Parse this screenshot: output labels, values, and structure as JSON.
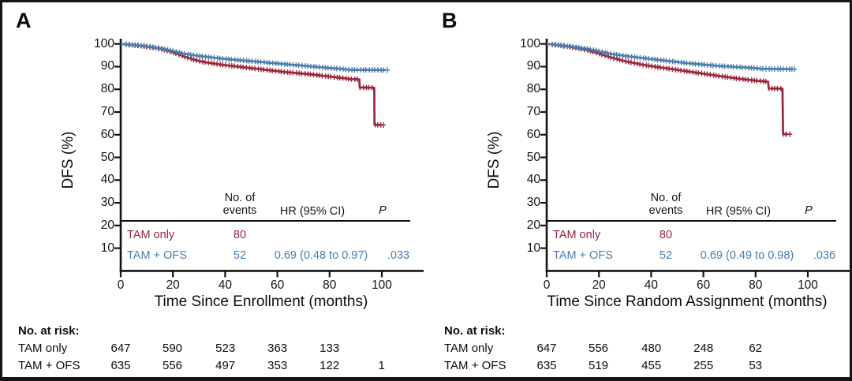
{
  "colors": {
    "tam_only": "#9A2439",
    "tam_ofs": "#4A7DAE",
    "axis": "#121212",
    "text": "#0d0d0d"
  },
  "figure": {
    "panels": [
      {
        "label": "A",
        "y_axis": {
          "title": "DFS (%)",
          "ticks": [
            100,
            90,
            80,
            70,
            60,
            50,
            40,
            30,
            20,
            10
          ]
        },
        "x_axis": {
          "title": "Time Since Enrollment (months)",
          "ticks": [
            0,
            20,
            40,
            60,
            80,
            100
          ]
        },
        "stats_table": {
          "events_header": "No. of\nevents",
          "hr_header": "HR (95% CI)",
          "p_header": "P",
          "rows": [
            {
              "name": "TAM only",
              "events": "80",
              "hr": "",
              "p": "",
              "color_key": "tam_only"
            },
            {
              "name": "TAM + OFS",
              "events": "52",
              "hr": "0.69 (0.48 to 0.97)",
              "p": ".033",
              "color_key": "tam_ofs"
            }
          ]
        },
        "risk_table": {
          "title": "No. at risk:",
          "rows": [
            {
              "name": "TAM only",
              "values": [
                "647",
                "590",
                "523",
                "363",
                "133",
                ""
              ]
            },
            {
              "name": "TAM + OFS",
              "values": [
                "635",
                "556",
                "497",
                "353",
                "122",
                "1"
              ]
            }
          ]
        }
      },
      {
        "label": "B",
        "y_axis": {
          "title": "DFS (%)",
          "ticks": [
            100,
            90,
            80,
            70,
            60,
            50,
            40,
            30,
            20,
            10
          ]
        },
        "x_axis": {
          "title": "Time Since Random Assignment (months)",
          "ticks": [
            0,
            20,
            40,
            60,
            80,
            100
          ]
        },
        "stats_table": {
          "events_header": "No. of\nevents",
          "hr_header": "HR (95% CI)",
          "p_header": "P",
          "rows": [
            {
              "name": "TAM only",
              "events": "80",
              "hr": "",
              "p": "",
              "color_key": "tam_only"
            },
            {
              "name": "TAM + OFS",
              "events": "52",
              "hr": "0.69 (0.49 to 0.98)",
              "p": ".036",
              "color_key": "tam_ofs"
            }
          ]
        },
        "risk_table": {
          "title": "No. at risk:",
          "rows": [
            {
              "name": "TAM only",
              "values": [
                "647",
                "556",
                "480",
                "248",
                "62"
              ]
            },
            {
              "name": "TAM + OFS",
              "values": [
                "635",
                "519",
                "455",
                "255",
                "53"
              ]
            }
          ]
        }
      }
    ]
  },
  "chart_data": [
    {
      "type": "line",
      "subtype": "kaplan-meier-step",
      "title": "A",
      "xlabel": "Time Since Enrollment (months)",
      "ylabel": "DFS (%)",
      "xlim": [
        0,
        114
      ],
      "ylim": [
        0,
        102
      ],
      "x_ticks": [
        0,
        20,
        40,
        60,
        80,
        100
      ],
      "y_ticks": [
        10,
        20,
        30,
        40,
        50,
        60,
        70,
        80,
        90,
        100
      ],
      "grid": false,
      "legend_position": "in-plot stats table",
      "series": [
        {
          "name": "TAM only",
          "color": "#9A2439",
          "events": 80,
          "points": [
            [
              0,
              100
            ],
            [
              3,
              99.7
            ],
            [
              6,
              99.4
            ],
            [
              9,
              99.0
            ],
            [
              12,
              98.5
            ],
            [
              15,
              97.9
            ],
            [
              18,
              97.0
            ],
            [
              21,
              95.9
            ],
            [
              24,
              94.6
            ],
            [
              26,
              93.8
            ],
            [
              28,
              93.1
            ],
            [
              30,
              92.5
            ],
            [
              33,
              91.8
            ],
            [
              36,
              91.3
            ],
            [
              39,
              90.8
            ],
            [
              42,
              90.4
            ],
            [
              45,
              90.0
            ],
            [
              48,
              89.6
            ],
            [
              51,
              89.2
            ],
            [
              54,
              88.8
            ],
            [
              57,
              88.4
            ],
            [
              60,
              88.0
            ],
            [
              63,
              87.6
            ],
            [
              66,
              87.3
            ],
            [
              69,
              87.0
            ],
            [
              72,
              86.7
            ],
            [
              75,
              86.3
            ],
            [
              78,
              85.9
            ],
            [
              81,
              85.5
            ],
            [
              84,
              85.1
            ],
            [
              86,
              84.8
            ],
            [
              88,
              84.5
            ],
            [
              91.4,
              84.4
            ],
            [
              91.5,
              80.8
            ],
            [
              97.1,
              80.7
            ],
            [
              97.2,
              64.4
            ],
            [
              100,
              64.3
            ]
          ]
        },
        {
          "name": "TAM + OFS",
          "color": "#4A7DAE",
          "events": 52,
          "hr": "0.69 (0.48 to 0.97)",
          "p": ".033",
          "points": [
            [
              0,
              100
            ],
            [
              3,
              99.7
            ],
            [
              6,
              99.4
            ],
            [
              9,
              99.1
            ],
            [
              12,
              98.6
            ],
            [
              15,
              98.1
            ],
            [
              18,
              97.4
            ],
            [
              21,
              96.6
            ],
            [
              24,
              95.8
            ],
            [
              27,
              95.2
            ],
            [
              30,
              94.7
            ],
            [
              33,
              94.3
            ],
            [
              36,
              93.9
            ],
            [
              39,
              93.5
            ],
            [
              42,
              93.2
            ],
            [
              45,
              92.9
            ],
            [
              48,
              92.6
            ],
            [
              51,
              92.3
            ],
            [
              54,
              92.0
            ],
            [
              57,
              91.7
            ],
            [
              60,
              91.4
            ],
            [
              63,
              91.1
            ],
            [
              66,
              90.8
            ],
            [
              69,
              90.5
            ],
            [
              72,
              90.2
            ],
            [
              75,
              89.9
            ],
            [
              78,
              89.6
            ],
            [
              81,
              89.3
            ],
            [
              84,
              89.1
            ],
            [
              86,
              88.8
            ],
            [
              88,
              88.6
            ],
            [
              101.5,
              88.5
            ]
          ]
        }
      ],
      "at_risk": {
        "months": [
          0,
          20,
          40,
          60,
          80,
          100
        ],
        "TAM only": [
          647,
          590,
          523,
          363,
          133,
          null
        ],
        "TAM + OFS": [
          635,
          556,
          497,
          353,
          122,
          1
        ]
      }
    },
    {
      "type": "line",
      "subtype": "kaplan-meier-step",
      "title": "B",
      "xlabel": "Time Since Random Assignment (months)",
      "ylabel": "DFS (%)",
      "xlim": [
        0,
        112
      ],
      "ylim": [
        0,
        102
      ],
      "x_ticks": [
        0,
        20,
        40,
        60,
        80,
        100
      ],
      "y_ticks": [
        10,
        20,
        30,
        40,
        50,
        60,
        70,
        80,
        90,
        100
      ],
      "grid": false,
      "legend_position": "in-plot stats table",
      "series": [
        {
          "name": "TAM only",
          "color": "#9A2439",
          "events": 80,
          "points": [
            [
              0,
              100
            ],
            [
              3,
              99.7
            ],
            [
              6,
              99.2
            ],
            [
              9,
              98.7
            ],
            [
              12,
              98.1
            ],
            [
              15,
              97.4
            ],
            [
              18,
              96.5
            ],
            [
              21,
              95.4
            ],
            [
              24,
              94.3
            ],
            [
              27,
              93.3
            ],
            [
              30,
              92.4
            ],
            [
              33,
              91.7
            ],
            [
              36,
              91.0
            ],
            [
              39,
              90.4
            ],
            [
              42,
              89.9
            ],
            [
              45,
              89.4
            ],
            [
              48,
              88.9
            ],
            [
              51,
              88.4
            ],
            [
              54,
              87.9
            ],
            [
              57,
              87.4
            ],
            [
              60,
              86.9
            ],
            [
              63,
              86.4
            ],
            [
              66,
              85.9
            ],
            [
              69,
              85.4
            ],
            [
              72,
              84.9
            ],
            [
              75,
              84.5
            ],
            [
              78,
              84.1
            ],
            [
              81,
              83.7
            ],
            [
              84.8,
              83.4
            ],
            [
              85,
              80.4
            ],
            [
              90.3,
              80.3
            ],
            [
              90.5,
              60.3
            ],
            [
              92.5,
              60.2
            ]
          ]
        },
        {
          "name": "TAM + OFS",
          "color": "#4A7DAE",
          "events": 52,
          "hr": "0.69 (0.49 to 0.98)",
          "p": ".036",
          "points": [
            [
              0,
              100
            ],
            [
              3,
              99.7
            ],
            [
              6,
              99.3
            ],
            [
              9,
              98.9
            ],
            [
              12,
              98.4
            ],
            [
              15,
              97.9
            ],
            [
              18,
              97.3
            ],
            [
              21,
              96.5
            ],
            [
              24,
              95.8
            ],
            [
              27,
              95.2
            ],
            [
              30,
              94.7
            ],
            [
              33,
              94.3
            ],
            [
              36,
              93.9
            ],
            [
              39,
              93.5
            ],
            [
              42,
              93.1
            ],
            [
              45,
              92.7
            ],
            [
              48,
              92.3
            ],
            [
              51,
              91.9
            ],
            [
              54,
              91.5
            ],
            [
              57,
              91.2
            ],
            [
              60,
              90.9
            ],
            [
              63,
              90.6
            ],
            [
              66,
              90.3
            ],
            [
              69,
              90.1
            ],
            [
              72,
              89.9
            ],
            [
              75,
              89.7
            ],
            [
              78,
              89.5
            ],
            [
              80,
              89.3
            ],
            [
              82,
              89.1
            ],
            [
              84,
              89.0
            ],
            [
              94.3,
              88.9
            ]
          ]
        }
      ],
      "at_risk": {
        "months": [
          0,
          20,
          40,
          60,
          80
        ],
        "TAM only": [
          647,
          556,
          480,
          248,
          62
        ],
        "TAM + OFS": [
          635,
          519,
          455,
          255,
          53
        ]
      }
    }
  ]
}
